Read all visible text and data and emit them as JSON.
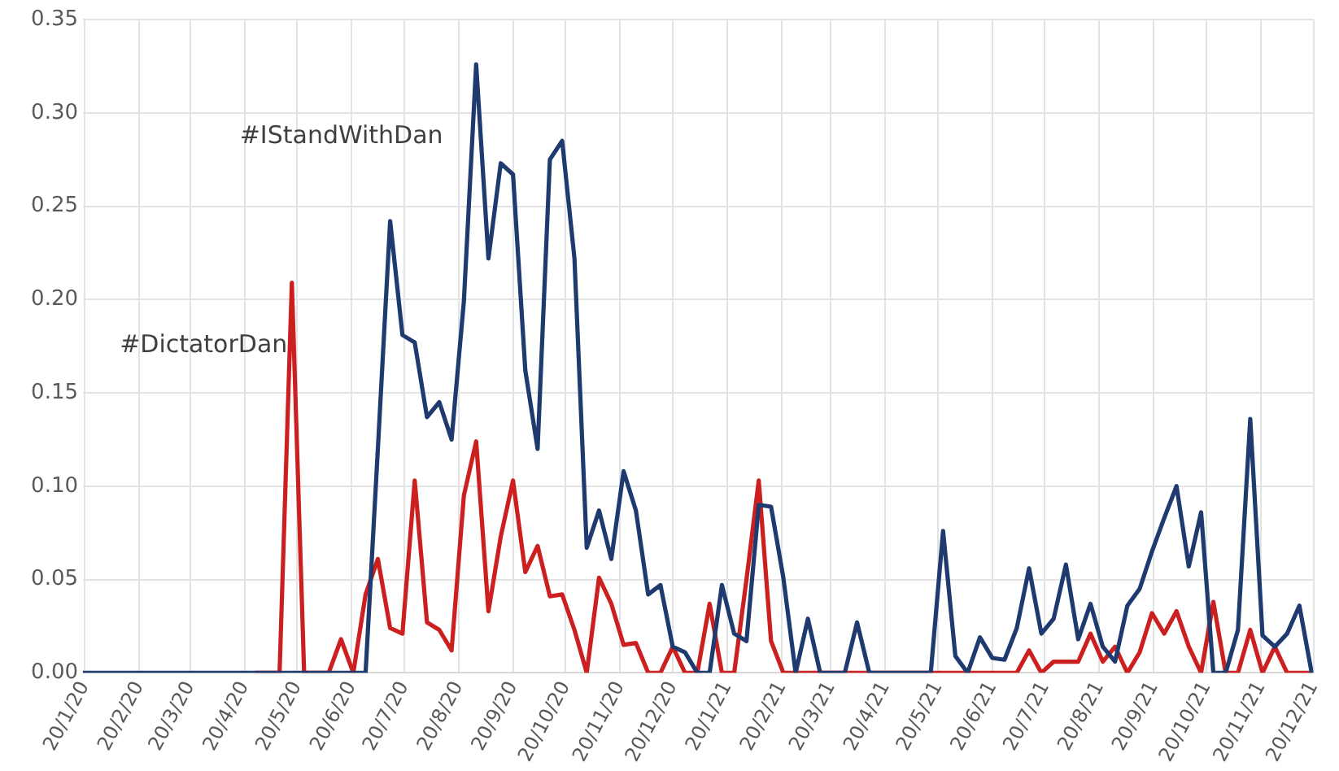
{
  "chart_data": {
    "type": "line",
    "marker": "none",
    "grid": true,
    "legend": false,
    "x": [
      "2020-01-19",
      "2020-01-26",
      "2020-02-02",
      "2020-02-09",
      "2020-02-16",
      "2020-02-23",
      "2020-03-01",
      "2020-03-08",
      "2020-03-15",
      "2020-03-22",
      "2020-03-29",
      "2020-04-05",
      "2020-04-12",
      "2020-04-19",
      "2020-04-26",
      "2020-05-03",
      "2020-05-10",
      "2020-05-17",
      "2020-05-24",
      "2020-05-31",
      "2020-06-07",
      "2020-06-14",
      "2020-06-21",
      "2020-06-28",
      "2020-07-05",
      "2020-07-12",
      "2020-07-19",
      "2020-07-26",
      "2020-08-02",
      "2020-08-09",
      "2020-08-16",
      "2020-08-23",
      "2020-08-30",
      "2020-09-06",
      "2020-09-13",
      "2020-09-20",
      "2020-09-27",
      "2020-10-04",
      "2020-10-11",
      "2020-10-18",
      "2020-10-25",
      "2020-11-01",
      "2020-11-08",
      "2020-11-15",
      "2020-11-22",
      "2020-11-29",
      "2020-12-06",
      "2020-12-13",
      "2020-12-20",
      "2020-12-27",
      "2021-01-03",
      "2021-01-10",
      "2021-01-17",
      "2021-01-24",
      "2021-01-31",
      "2021-02-07",
      "2021-02-14",
      "2021-02-21",
      "2021-02-28",
      "2021-03-07",
      "2021-03-14",
      "2021-03-21",
      "2021-03-28",
      "2021-04-04",
      "2021-04-11",
      "2021-04-18",
      "2021-04-25",
      "2021-05-02",
      "2021-05-09",
      "2021-05-16",
      "2021-05-23",
      "2021-05-30",
      "2021-06-06",
      "2021-06-13",
      "2021-06-20",
      "2021-06-27",
      "2021-07-04",
      "2021-07-11",
      "2021-07-18",
      "2021-07-25",
      "2021-08-01",
      "2021-08-08",
      "2021-08-15",
      "2021-08-22",
      "2021-08-29",
      "2021-09-05",
      "2021-09-12",
      "2021-09-19",
      "2021-09-26",
      "2021-10-03",
      "2021-10-10",
      "2021-10-17",
      "2021-10-24",
      "2021-10-31",
      "2021-11-07",
      "2021-11-14",
      "2021-11-21",
      "2021-11-28",
      "2021-12-05",
      "2021-12-12",
      "2021-12-19"
    ],
    "series": [
      {
        "name": "#IStandWithDan",
        "color": "#1f3a6e",
        "values": [
          0,
          0,
          0,
          0,
          0,
          0,
          0,
          0,
          0,
          0,
          0,
          0,
          0,
          0,
          0,
          0,
          0,
          0,
          0,
          0,
          0,
          0,
          0,
          0,
          0.12,
          0.242,
          0.181,
          0.177,
          0.137,
          0.145,
          0.125,
          0.199,
          0.326,
          0.222,
          0.273,
          0.267,
          0.162,
          0.12,
          0.275,
          0.285,
          0.222,
          0.067,
          0.087,
          0.061,
          0.108,
          0.087,
          0.042,
          0.047,
          0.014,
          0.011,
          0,
          0,
          0.047,
          0.021,
          0.017,
          0.09,
          0.089,
          0.051,
          0,
          0.029,
          0,
          0,
          0,
          0.027,
          0,
          0,
          0,
          0,
          0,
          0,
          0.076,
          0.009,
          0,
          0.019,
          0.008,
          0.007,
          0.024,
          0.056,
          0.021,
          0.029,
          0.058,
          0.018,
          0.037,
          0.014,
          0.006,
          0.036,
          0.045,
          0.065,
          0.083,
          0.1,
          0.057,
          0.086,
          0,
          0,
          0.023,
          0.136,
          0.02,
          0.014,
          0.021,
          0.036,
          0
        ]
      },
      {
        "name": "#DictatorDan",
        "color": "#cc1f1f",
        "values": [
          null,
          null,
          null,
          null,
          null,
          null,
          null,
          null,
          null,
          null,
          null,
          null,
          null,
          null,
          0,
          0,
          0,
          0.209,
          0,
          0,
          0,
          0.018,
          0,
          0.042,
          0.061,
          0.024,
          0.021,
          0.103,
          0.027,
          0.023,
          0.012,
          0.095,
          0.124,
          0.033,
          0.073,
          0.103,
          0.054,
          0.068,
          0.041,
          0.042,
          0.023,
          0,
          0.051,
          0.037,
          0.015,
          0.016,
          0,
          0,
          0.014,
          0,
          0,
          0.037,
          0,
          0,
          0.05,
          0.103,
          0.017,
          0,
          0,
          0,
          0,
          0,
          0,
          0,
          0,
          0,
          0,
          0,
          0,
          0,
          0,
          0,
          0,
          0,
          0,
          0,
          0,
          0.012,
          0,
          0.006,
          0.006,
          0.006,
          0.021,
          0.006,
          0.014,
          0,
          0.011,
          0.032,
          0.021,
          0.033,
          0.014,
          0,
          0.038,
          0,
          0,
          0.023,
          0,
          0.014,
          0,
          0,
          0
        ]
      }
    ],
    "xlim": [
      "2020-01-19",
      "2021-12-20"
    ],
    "xticks": [
      {
        "value": "2020-01-20",
        "label": "20/1/20"
      },
      {
        "value": "2020-02-20",
        "label": "20/2/20"
      },
      {
        "value": "2020-03-20",
        "label": "20/3/20"
      },
      {
        "value": "2020-04-20",
        "label": "20/4/20"
      },
      {
        "value": "2020-05-20",
        "label": "20/5/20"
      },
      {
        "value": "2020-06-20",
        "label": "20/6/20"
      },
      {
        "value": "2020-07-20",
        "label": "20/7/20"
      },
      {
        "value": "2020-08-20",
        "label": "20/8/20"
      },
      {
        "value": "2020-09-20",
        "label": "20/9/20"
      },
      {
        "value": "2020-10-20",
        "label": "20/10/20"
      },
      {
        "value": "2020-11-20",
        "label": "20/11/20"
      },
      {
        "value": "2020-12-20",
        "label": "20/12/20"
      },
      {
        "value": "2021-01-20",
        "label": "20/1/21"
      },
      {
        "value": "2021-02-20",
        "label": "20/2/21"
      },
      {
        "value": "2021-03-20",
        "label": "20/3/21"
      },
      {
        "value": "2021-04-20",
        "label": "20/4/21"
      },
      {
        "value": "2021-05-20",
        "label": "20/5/21"
      },
      {
        "value": "2021-06-20",
        "label": "20/6/21"
      },
      {
        "value": "2021-07-20",
        "label": "20/7/21"
      },
      {
        "value": "2021-08-20",
        "label": "20/8/21"
      },
      {
        "value": "2021-09-20",
        "label": "20/9/21"
      },
      {
        "value": "2021-10-20",
        "label": "20/10/21"
      },
      {
        "value": "2021-11-20",
        "label": "20/11/21"
      },
      {
        "value": "2021-12-20",
        "label": "20/12/21"
      }
    ],
    "ylim": [
      0,
      0.35
    ],
    "yticks": [
      {
        "value": 0,
        "label": "0.00"
      },
      {
        "value": 0.05,
        "label": "0.05"
      },
      {
        "value": 0.1,
        "label": "0.10"
      },
      {
        "value": 0.15,
        "label": "0.15"
      },
      {
        "value": 0.2,
        "label": "0.20"
      },
      {
        "value": 0.25,
        "label": "0.25"
      },
      {
        "value": 0.3,
        "label": "0.30"
      },
      {
        "value": 0.35,
        "label": "0.35"
      }
    ]
  }
}
